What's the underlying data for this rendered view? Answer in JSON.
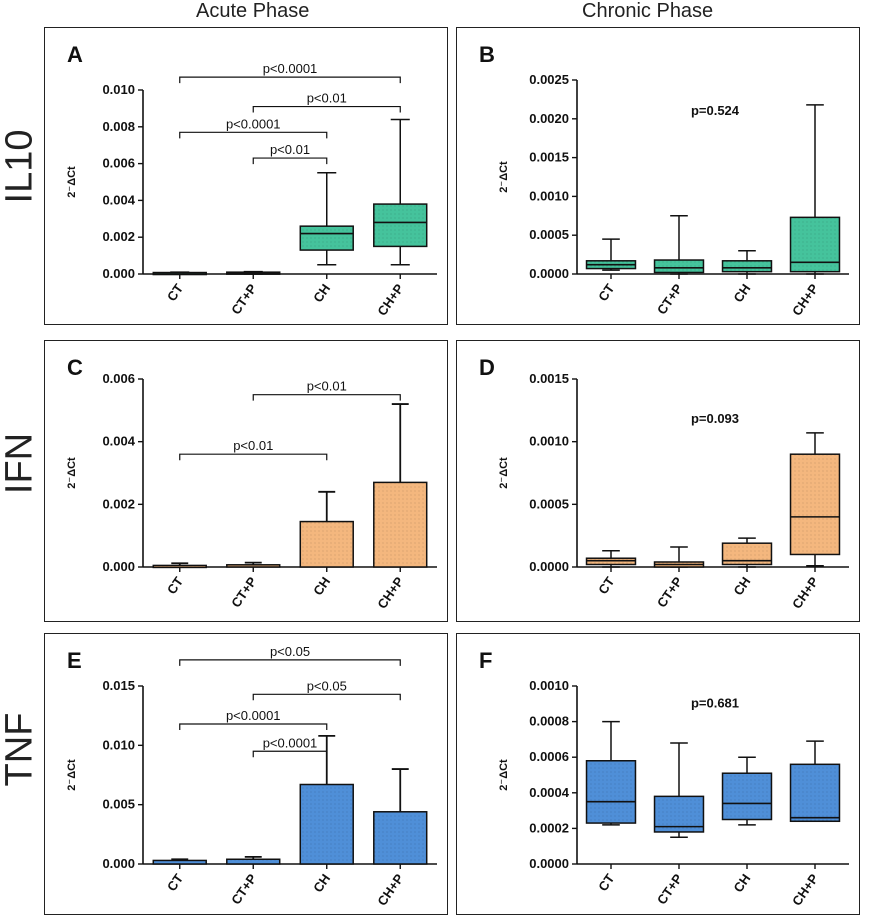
{
  "columns": [
    "Acute Phase",
    "Chronic Phase"
  ],
  "rows": [
    "IL10",
    "IFN",
    "TNF"
  ],
  "colors": {
    "IL10": "#45c39c",
    "IFN": "#f4b77e",
    "TNF": "#4f8fd8",
    "stroke": "#111111"
  },
  "chart_data": [
    {
      "id": "A",
      "type": "box",
      "title": "IL10 - Acute Phase",
      "ylabel": "2⁻ΔCt",
      "ylim": [
        0,
        0.01
      ],
      "yticks": [
        0,
        0.002,
        0.004,
        0.006,
        0.008,
        0.01
      ],
      "ytick_labels": [
        "0.000",
        "0.002",
        "0.004",
        "0.006",
        "0.008",
        "0.010"
      ],
      "categories": [
        "CT",
        "CT+P",
        "CH",
        "CH+P"
      ],
      "boxes": [
        {
          "min": 0,
          "q1": 3e-05,
          "median": 5e-05,
          "q3": 8e-05,
          "max": 0.0001
        },
        {
          "min": 0,
          "q1": 4e-05,
          "median": 7e-05,
          "q3": 0.0001,
          "max": 0.00013
        },
        {
          "min": 0.0005,
          "q1": 0.0013,
          "median": 0.0022,
          "q3": 0.0026,
          "max": 0.0055
        },
        {
          "min": 0.0005,
          "q1": 0.0015,
          "median": 0.0028,
          "q3": 0.0038,
          "max": 0.0084
        }
      ],
      "annotations": [
        {
          "text": "p<0.0001",
          "from": 0,
          "to": 3,
          "y": 0.0107
        },
        {
          "text": "p<0.01",
          "from": 1,
          "to": 3,
          "y": 0.0091
        },
        {
          "text": "p<0.0001",
          "from": 0,
          "to": 2,
          "y": 0.0077
        },
        {
          "text": "p<0.01",
          "from": 1,
          "to": 2,
          "y": 0.0063
        }
      ]
    },
    {
      "id": "B",
      "type": "box",
      "title": "IL10 - Chronic Phase",
      "ylabel": "2⁻ΔCt",
      "ylim": [
        0,
        0.0025
      ],
      "yticks": [
        0,
        0.0005,
        0.001,
        0.0015,
        0.002,
        0.0025
      ],
      "ytick_labels": [
        "0.0000",
        "0.0005",
        "0.0010",
        "0.0015",
        "0.0020",
        "0.0025"
      ],
      "categories": [
        "CT",
        "CT+P",
        "CH",
        "CH+P"
      ],
      "boxes": [
        {
          "min": 5e-05,
          "q1": 7e-05,
          "median": 0.00012,
          "q3": 0.00017,
          "max": 0.00045
        },
        {
          "min": 0,
          "q1": 2e-05,
          "median": 8e-05,
          "q3": 0.00018,
          "max": 0.00075
        },
        {
          "min": 0,
          "q1": 3e-05,
          "median": 8e-05,
          "q3": 0.00017,
          "max": 0.0003
        },
        {
          "min": 0,
          "q1": 3e-05,
          "median": 0.00015,
          "q3": 0.00073,
          "max": 0.00218
        }
      ],
      "p_text": "p=0.524",
      "p_y": 0.00205
    },
    {
      "id": "C",
      "type": "bar",
      "title": "IFN - Acute Phase",
      "ylabel": "2⁻ΔCt",
      "ylim": [
        0,
        0.006
      ],
      "yticks": [
        0,
        0.002,
        0.004,
        0.006
      ],
      "ytick_labels": [
        "0.000",
        "0.002",
        "0.004",
        "0.006"
      ],
      "categories": [
        "CT",
        "CT+P",
        "CH",
        "CH+P"
      ],
      "values": [
        5e-05,
        7e-05,
        0.00145,
        0.0027
      ],
      "errors": [
        0.00012,
        0.00014,
        0.0024,
        0.0052
      ],
      "annotations": [
        {
          "text": "p<0.01",
          "from": 1,
          "to": 3,
          "y": 0.0055
        },
        {
          "text": "p<0.01",
          "from": 0,
          "to": 2,
          "y": 0.0036
        }
      ]
    },
    {
      "id": "D",
      "type": "box",
      "title": "IFN - Chronic Phase",
      "ylabel": "2⁻ΔCt",
      "ylim": [
        0,
        0.0015
      ],
      "yticks": [
        0,
        0.0005,
        0.001,
        0.0015
      ],
      "ytick_labels": [
        "0.0000",
        "0.0005",
        "0.0010",
        "0.0015"
      ],
      "categories": [
        "CT",
        "CT+P",
        "CH",
        "CH+P"
      ],
      "boxes": [
        {
          "min": 0,
          "q1": 2e-05,
          "median": 5e-05,
          "q3": 7e-05,
          "max": 0.00013
        },
        {
          "min": 0,
          "q1": 0,
          "median": 2e-05,
          "q3": 4e-05,
          "max": 0.00016
        },
        {
          "min": 0,
          "q1": 2e-05,
          "median": 5e-05,
          "q3": 0.00019,
          "max": 0.00023
        },
        {
          "min": 1e-05,
          "q1": 0.0001,
          "median": 0.0004,
          "q3": 0.0009,
          "max": 0.00107
        }
      ],
      "p_text": "p=0.093",
      "p_y": 0.00115
    },
    {
      "id": "E",
      "type": "bar",
      "title": "TNF - Acute Phase",
      "ylabel": "2⁻ΔCt",
      "ylim": [
        0,
        0.015
      ],
      "yticks": [
        0,
        0.005,
        0.01,
        0.015
      ],
      "ytick_labels": [
        "0.000",
        "0.005",
        "0.010",
        "0.015"
      ],
      "categories": [
        "CT",
        "CT+P",
        "CH",
        "CH+P"
      ],
      "values": [
        0.0003,
        0.0004,
        0.0067,
        0.0044
      ],
      "errors": [
        0.0004,
        0.0006,
        0.0108,
        0.008
      ],
      "annotations": [
        {
          "text": "p<0.05",
          "from": 0,
          "to": 3,
          "y": 0.0172
        },
        {
          "text": "p<0.05",
          "from": 1,
          "to": 3,
          "y": 0.0143
        },
        {
          "text": "p<0.0001",
          "from": 0,
          "to": 2,
          "y": 0.0118
        },
        {
          "text": "p<0.0001",
          "from": 1,
          "to": 2,
          "y": 0.0095
        }
      ]
    },
    {
      "id": "F",
      "type": "box",
      "title": "TNF - Chronic Phase",
      "ylabel": "2⁻ΔCt",
      "ylim": [
        0,
        0.001
      ],
      "yticks": [
        0,
        0.0002,
        0.0004,
        0.0006,
        0.0008,
        0.001
      ],
      "ytick_labels": [
        "0.0000",
        "0.0002",
        "0.0004",
        "0.0006",
        "0.0008",
        "0.0010"
      ],
      "categories": [
        "CT",
        "CT+P",
        "CH",
        "CH+P"
      ],
      "boxes": [
        {
          "min": 0.00022,
          "q1": 0.00023,
          "median": 0.00035,
          "q3": 0.00058,
          "max": 0.0008
        },
        {
          "min": 0.00015,
          "q1": 0.00018,
          "median": 0.00021,
          "q3": 0.00038,
          "max": 0.00068
        },
        {
          "min": 0.00022,
          "q1": 0.00025,
          "median": 0.00034,
          "q3": 0.00051,
          "max": 0.0006
        },
        {
          "min": 0.00024,
          "q1": 0.00024,
          "median": 0.00026,
          "q3": 0.00056,
          "max": 0.00069
        }
      ],
      "p_text": "p=0.681",
      "p_y": 0.00088
    }
  ]
}
